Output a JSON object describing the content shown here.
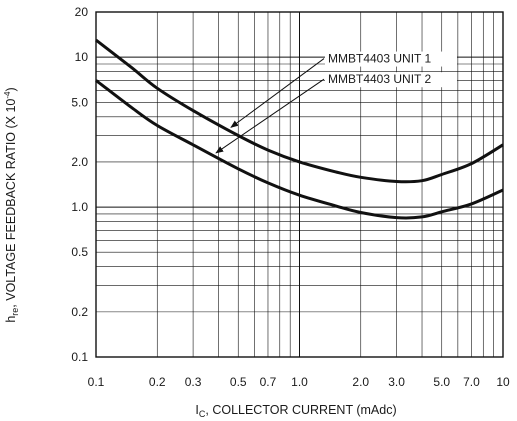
{
  "chart_data": {
    "type": "line",
    "title": "",
    "xlabel": {
      "main": "I",
      "sub": "C",
      "rest": ", COLLECTOR CURRENT (mAdc)"
    },
    "ylabel": {
      "sub_prefix": "h",
      "sub": "re",
      "rest": ", VOLTAGE FEEDBACK RATIO (X 10",
      "exp": "-4",
      "close": ")"
    },
    "x_scale": "log",
    "y_scale": "log",
    "xlim": [
      0.1,
      10
    ],
    "ylim": [
      0.1,
      20
    ],
    "x_ticks": [
      0.1,
      0.2,
      0.3,
      0.5,
      0.7,
      1.0,
      2.0,
      3.0,
      5.0,
      7.0,
      10
    ],
    "x_tick_labels": [
      "0.1",
      "0.2",
      "0.3",
      "0.5",
      "0.7",
      "1.0",
      "2.0",
      "3.0",
      "5.0",
      "7.0",
      "10"
    ],
    "y_ticks": [
      0.1,
      0.2,
      0.5,
      1.0,
      2.0,
      5.0,
      10,
      20
    ],
    "y_tick_labels": [
      "0.1",
      "0.2",
      "0.5",
      "1.0",
      "2.0",
      "5.0",
      "10",
      "20"
    ],
    "grid": true,
    "series": [
      {
        "name": "MMBT4403 UNIT 1",
        "x": [
          0.1,
          0.15,
          0.2,
          0.3,
          0.5,
          0.7,
          1.0,
          1.5,
          2.0,
          3.0,
          4.0,
          5.0,
          7.0,
          10
        ],
        "y": [
          13.0,
          8.5,
          6.2,
          4.4,
          3.0,
          2.4,
          2.0,
          1.72,
          1.58,
          1.48,
          1.5,
          1.65,
          1.95,
          2.6
        ]
      },
      {
        "name": "MMBT4403 UNIT 2",
        "x": [
          0.1,
          0.15,
          0.2,
          0.3,
          0.5,
          0.7,
          1.0,
          1.5,
          2.0,
          3.0,
          4.0,
          5.0,
          7.0,
          10
        ],
        "y": [
          7.0,
          4.6,
          3.5,
          2.6,
          1.8,
          1.45,
          1.2,
          1.02,
          0.92,
          0.85,
          0.86,
          0.93,
          1.05,
          1.3
        ]
      }
    ],
    "legend": {
      "placement": "top-right",
      "labels": [
        "MMBT4403 UNIT 1",
        "MMBT4403 UNIT 2"
      ],
      "arrow_targets_x": [
        0.45,
        0.38
      ]
    }
  }
}
